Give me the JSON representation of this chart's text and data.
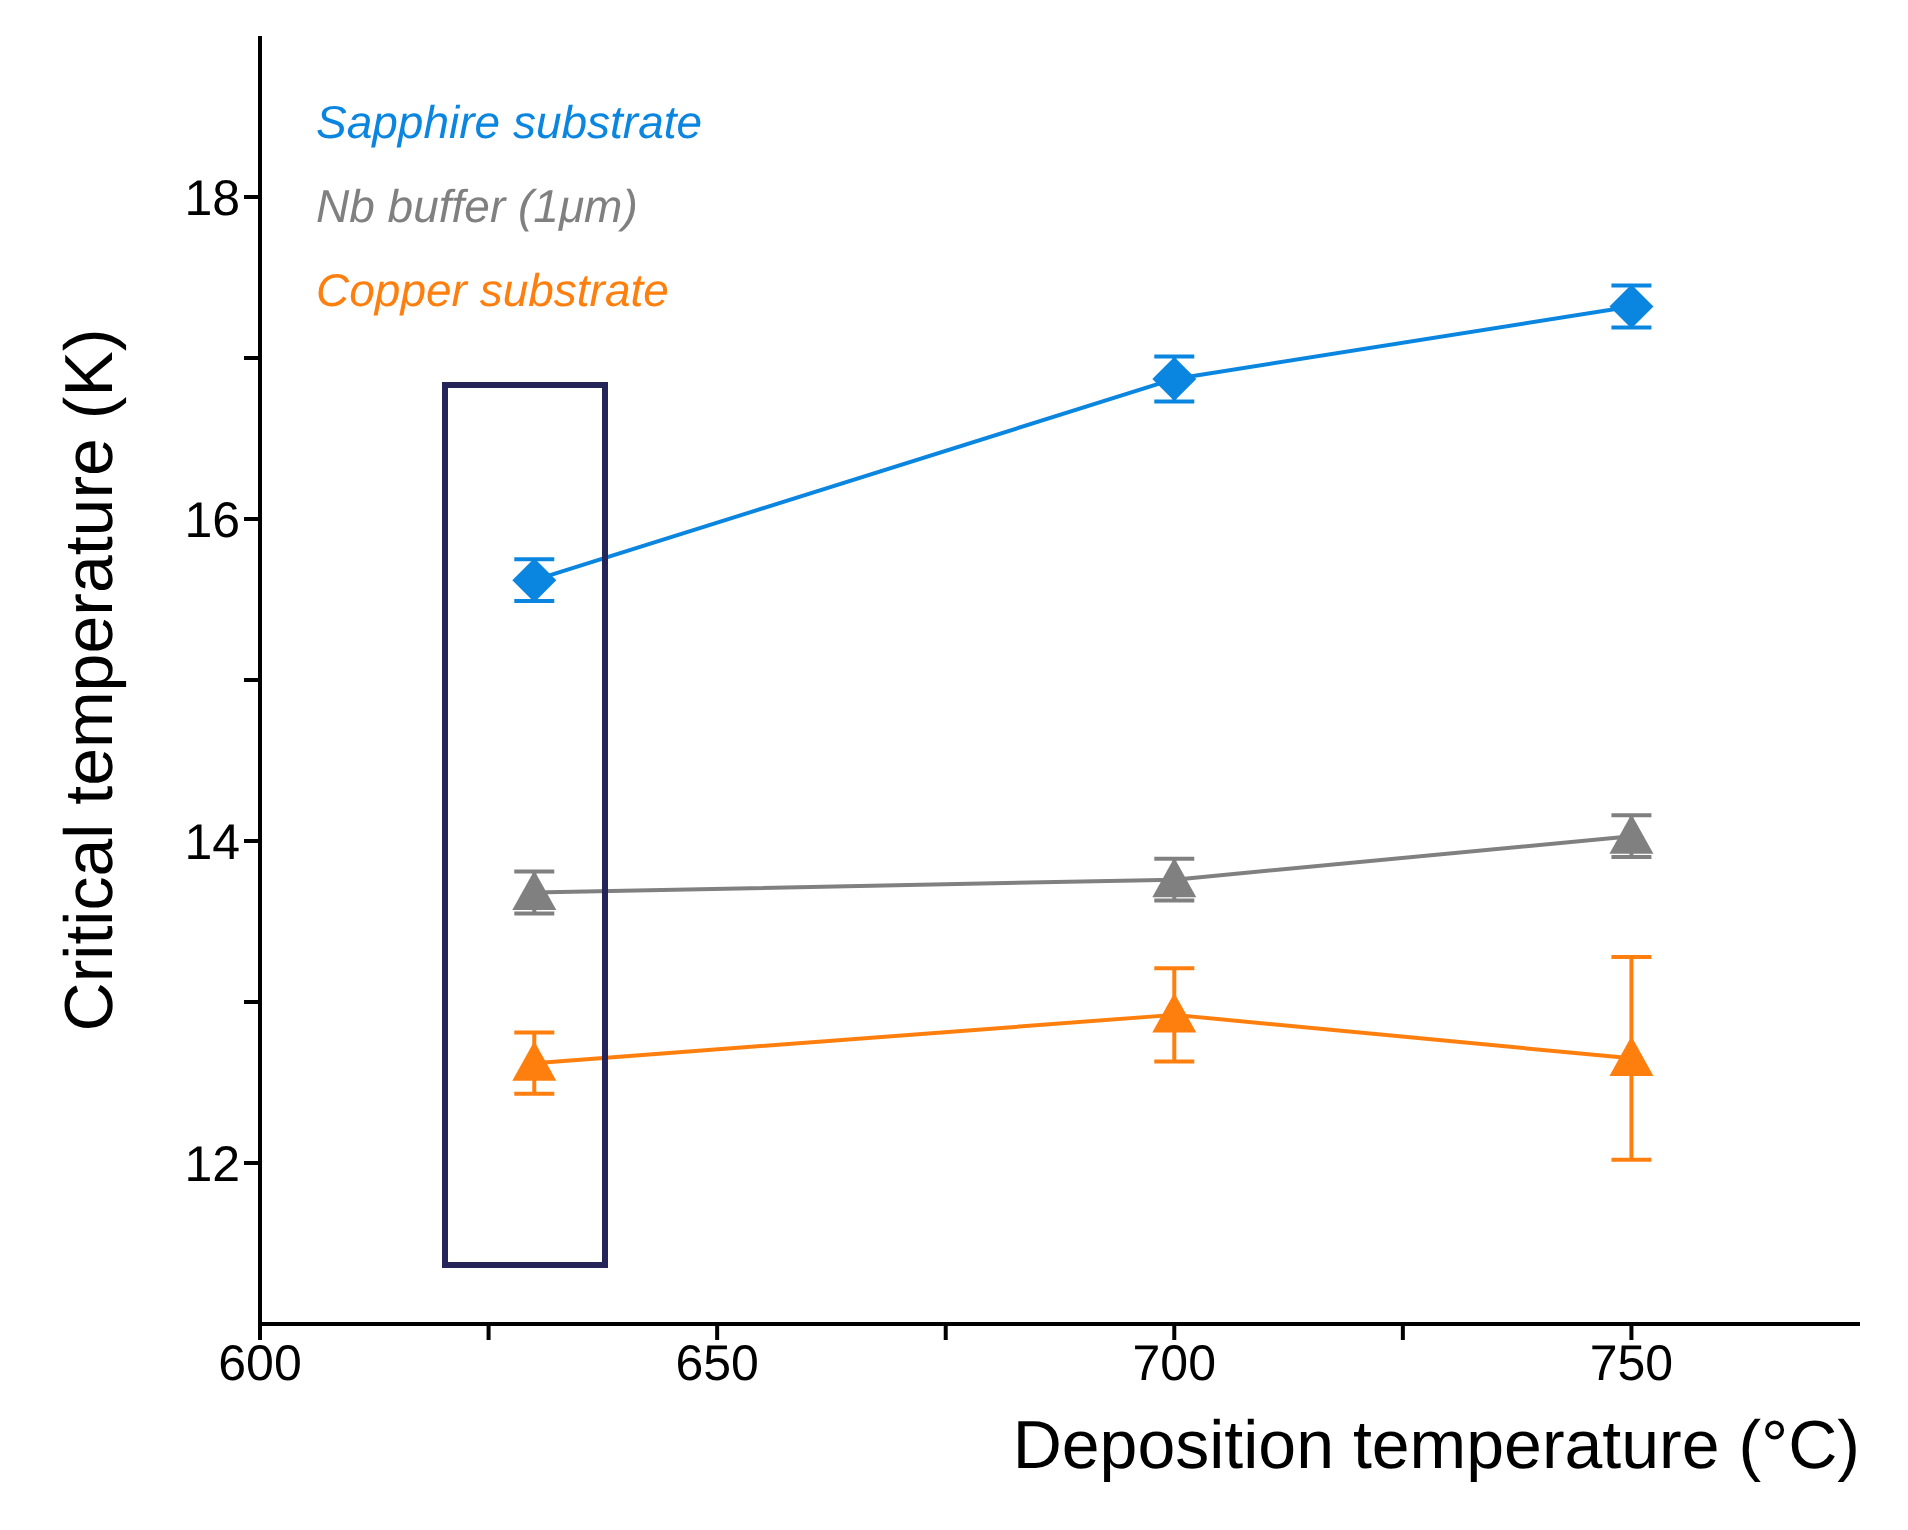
{
  "chart_data": {
    "type": "line",
    "xlabel": "Deposition temperature (°C)",
    "ylabel": "Critical temperature (K)",
    "x": [
      630,
      700,
      750
    ],
    "series": [
      {
        "name": "Sapphire substrate",
        "color": "#0a86e0",
        "marker": "diamond",
        "values": [
          15.62,
          16.87,
          17.32
        ],
        "errors": [
          0.13,
          0.14,
          0.13
        ]
      },
      {
        "name": "Nb buffer (1μm)",
        "color": "#808080",
        "marker": "triangle",
        "values": [
          13.68,
          13.76,
          14.03
        ],
        "errors": [
          0.13,
          0.13,
          0.13
        ]
      },
      {
        "name": "Copper substrate",
        "color": "#ff7f0e",
        "marker": "triangle",
        "values": [
          12.62,
          12.92,
          12.65
        ],
        "errors": [
          0.19,
          0.29,
          0.63
        ]
      }
    ],
    "xlim": [
      600,
      775
    ],
    "xticks": [
      600,
      {
        "value": 625,
        "label": null
      },
      650,
      {
        "value": 675,
        "label": null
      },
      700,
      {
        "value": 725,
        "label": null
      },
      750
    ],
    "ylim": [
      11,
      19
    ],
    "yticks": [
      12,
      {
        "value": 13,
        "label": null
      },
      14,
      {
        "value": 15,
        "label": null
      },
      16,
      {
        "value": 17,
        "label": null
      },
      18
    ],
    "legend": "top left",
    "grid": false,
    "line_style": "solid"
  }
}
